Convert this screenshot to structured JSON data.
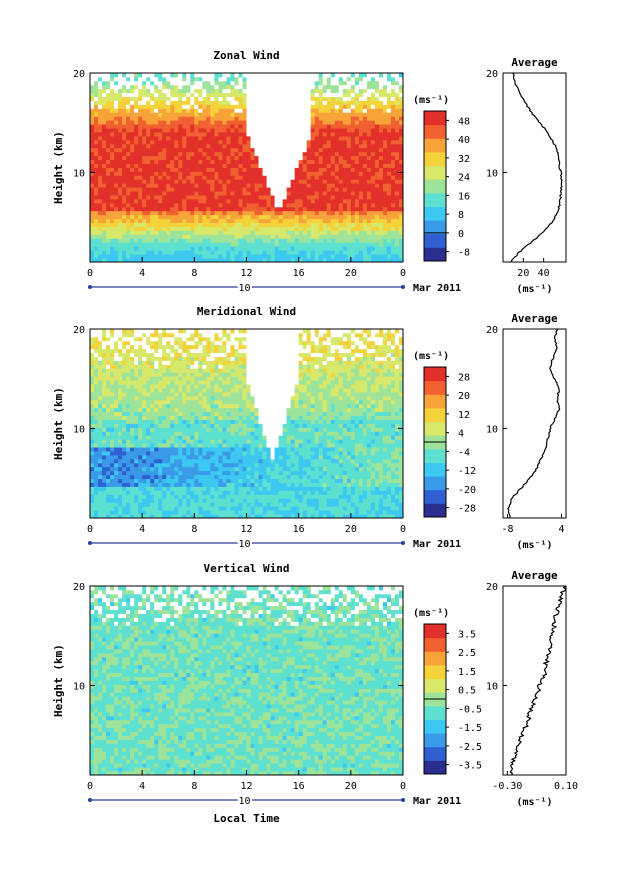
{
  "colors": {
    "scale": [
      "#2a2f8f",
      "#2f5fd0",
      "#3a9ae8",
      "#3cc8f0",
      "#5de0d0",
      "#9ee39a",
      "#d8e86a",
      "#f4d23a",
      "#f8a23a",
      "#f06030",
      "#e2302a"
    ],
    "missing": "#ffffff"
  },
  "common": {
    "height_ticks": [
      "10",
      "20"
    ],
    "time_ticks": [
      "0",
      "4",
      "8",
      "12",
      "16",
      "20",
      "0"
    ],
    "date_day": "10",
    "date_month": "Mar 2011",
    "xlabel": "Local Time",
    "ylabel": "Height (km)",
    "unit_label": "(ms⁻¹)",
    "profile_title": "Average",
    "profile_unit": "(ms⁻¹)"
  },
  "chart_data": [
    {
      "type": "heatmap",
      "title": "Zonal Wind",
      "xlabel": "Local Time",
      "ylabel": "Height (km)",
      "x_range_hours": [
        0,
        24
      ],
      "ylim": [
        1,
        20
      ],
      "colorbar_ticks": [
        "48",
        "40",
        "32",
        "24",
        "16",
        "8",
        "0",
        "-8"
      ],
      "colorbar_range": [
        -12,
        52
      ],
      "missing_gap": {
        "start_hour": 12,
        "end_hour": 17
      },
      "profile": {
        "xlim": [
          0,
          62
        ],
        "xticks": [
          "20",
          "40"
        ],
        "height": [
          1,
          2,
          3,
          4,
          5,
          6,
          7,
          8,
          9,
          10,
          11,
          12,
          13,
          14,
          15,
          16,
          17,
          18,
          19,
          20
        ],
        "mean_speed": [
          8,
          16,
          28,
          40,
          48,
          54,
          56,
          57,
          58,
          57,
          55,
          54,
          50,
          44,
          36,
          28,
          22,
          16,
          12,
          10
        ]
      }
    },
    {
      "type": "heatmap",
      "title": "Meridional Wind",
      "xlabel": "Local Time",
      "ylabel": "Height (km)",
      "x_range_hours": [
        0,
        24
      ],
      "ylim": [
        1,
        20
      ],
      "colorbar_ticks": [
        "28",
        "20",
        "12",
        "4",
        "-4",
        "-12",
        "-20",
        "-28"
      ],
      "colorbar_range": [
        -32,
        32
      ],
      "missing_gap": {
        "start_hour": 12,
        "end_hour": 16
      },
      "profile": {
        "xlim": [
          -9,
          5
        ],
        "xticks": [
          "-8",
          "4"
        ],
        "height": [
          1,
          2,
          3,
          4,
          5,
          6,
          7,
          8,
          9,
          10,
          11,
          12,
          13,
          14,
          15,
          16,
          17,
          18,
          19,
          20
        ],
        "mean_speed": [
          -7.5,
          -7.8,
          -7,
          -5,
          -3,
          -1.5,
          -0.5,
          0.5,
          1,
          1.5,
          2.5,
          3.5,
          3,
          3.5,
          2.5,
          1.5,
          2,
          3,
          2.5,
          3
        ]
      }
    },
    {
      "type": "heatmap",
      "title": "Vertical Wind",
      "xlabel": "Local Time",
      "ylabel": "Height (km)",
      "x_range_hours": [
        0,
        24
      ],
      "ylim": [
        1,
        20
      ],
      "colorbar_ticks": [
        "3.5",
        "2.5",
        "1.5",
        "0.5",
        "-0.5",
        "-1.5",
        "-2.5",
        "-3.5"
      ],
      "colorbar_range": [
        -4,
        4
      ],
      "missing_gap": null,
      "profile": {
        "xlim": [
          -0.33,
          0.1
        ],
        "xticks": [
          "-0.30",
          "0.10"
        ],
        "height": [
          1,
          2,
          3,
          4,
          5,
          6,
          7,
          8,
          9,
          10,
          11,
          12,
          13,
          14,
          15,
          16,
          17,
          18,
          19,
          20
        ],
        "mean_speed": [
          -0.28,
          -0.27,
          -0.25,
          -0.22,
          -0.2,
          -0.17,
          -0.15,
          -0.13,
          -0.1,
          -0.08,
          -0.05,
          -0.04,
          -0.02,
          -0.01,
          0.0,
          0.02,
          0.03,
          0.05,
          0.07,
          0.09
        ]
      }
    }
  ]
}
